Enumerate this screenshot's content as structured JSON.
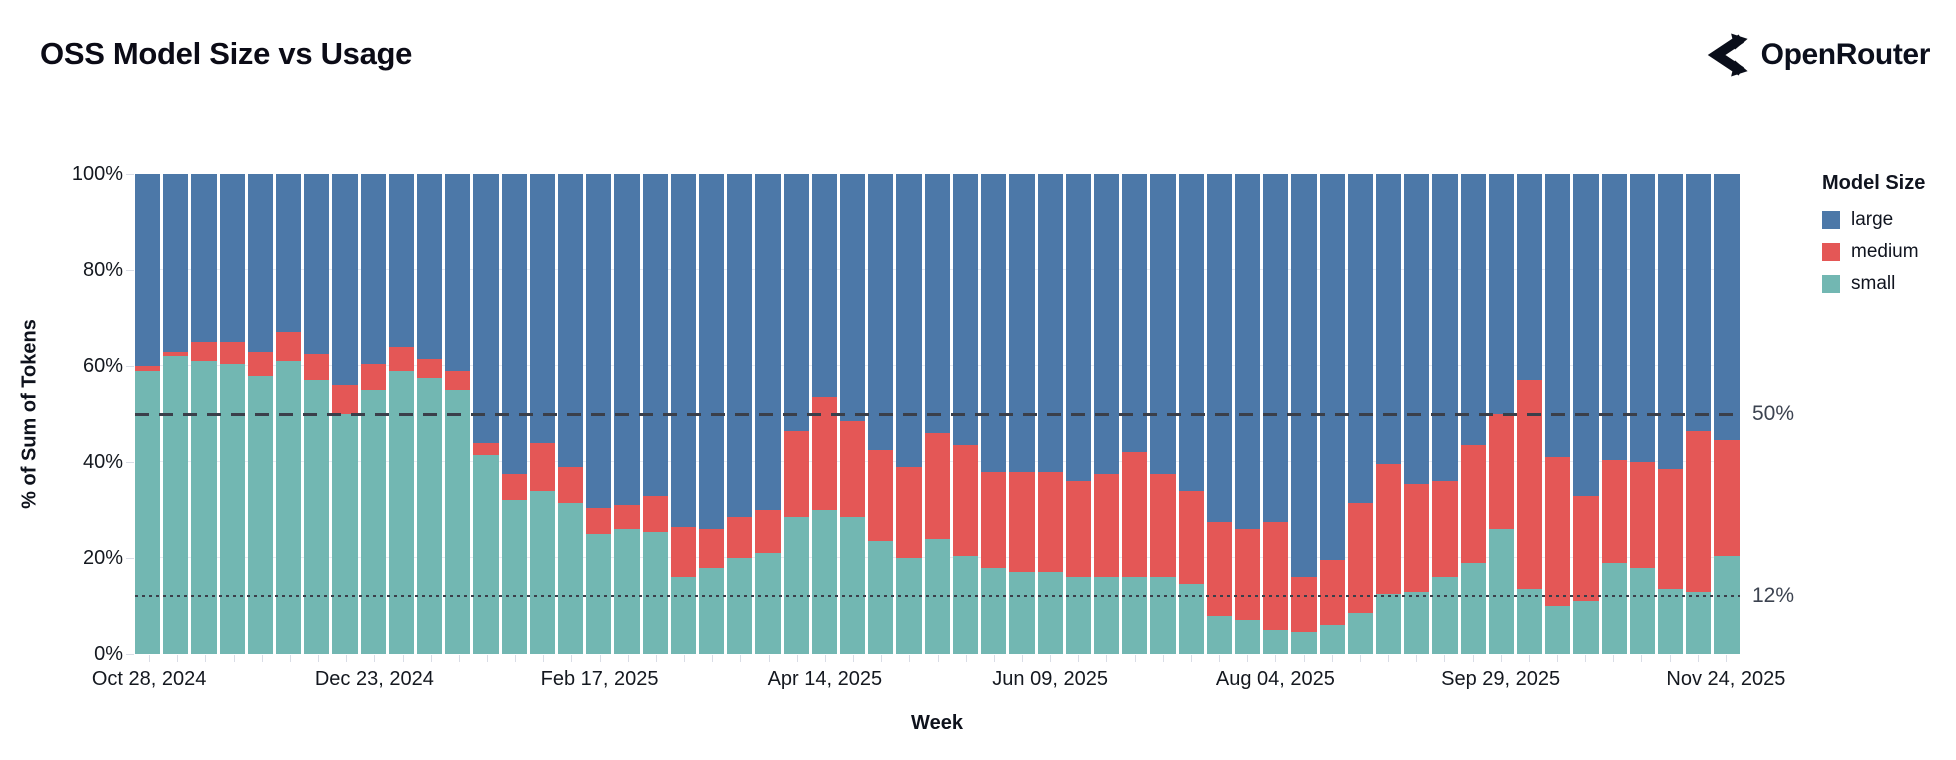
{
  "header": {
    "title": "OSS Model Size vs Usage",
    "brand": "OpenRouter"
  },
  "chart_data": {
    "type": "bar",
    "stacked": true,
    "title": "OSS Model Size vs Usage",
    "xlabel": "Week",
    "ylabel": "% of Sum of Tokens",
    "ylim": [
      0,
      100
    ],
    "grid": true,
    "y_ticks": [
      "0%",
      "20%",
      "40%",
      "60%",
      "80%",
      "100%"
    ],
    "x_label_every": 8,
    "visible_x_labels": [
      "Oct 28, 2024",
      "Dec 23, 2024",
      "Feb 17, 2025",
      "Apr 14, 2025",
      "Jun 09, 2025",
      "Aug 04, 2025",
      "Sep 29, 2025",
      "Nov 24, 2025"
    ],
    "legend_title": "Model Size",
    "legend_position": "right",
    "categories": [
      "Oct 28, 2024",
      "Nov 04, 2024",
      "Nov 11, 2024",
      "Nov 18, 2024",
      "Nov 25, 2024",
      "Dec 02, 2024",
      "Dec 09, 2024",
      "Dec 16, 2024",
      "Dec 23, 2024",
      "Dec 30, 2024",
      "Jan 06, 2025",
      "Jan 13, 2025",
      "Jan 20, 2025",
      "Jan 27, 2025",
      "Feb 03, 2025",
      "Feb 10, 2025",
      "Feb 17, 2025",
      "Feb 24, 2025",
      "Mar 03, 2025",
      "Mar 10, 2025",
      "Mar 17, 2025",
      "Mar 24, 2025",
      "Mar 31, 2025",
      "Apr 07, 2025",
      "Apr 14, 2025",
      "Apr 21, 2025",
      "Apr 28, 2025",
      "May 05, 2025",
      "May 12, 2025",
      "May 19, 2025",
      "May 26, 2025",
      "Jun 02, 2025",
      "Jun 09, 2025",
      "Jun 16, 2025",
      "Jun 23, 2025",
      "Jun 30, 2025",
      "Jul 07, 2025",
      "Jul 14, 2025",
      "Jul 21, 2025",
      "Jul 28, 2025",
      "Aug 04, 2025",
      "Aug 11, 2025",
      "Aug 18, 2025",
      "Aug 25, 2025",
      "Sep 01, 2025",
      "Sep 08, 2025",
      "Sep 15, 2025",
      "Sep 22, 2025",
      "Sep 29, 2025",
      "Oct 06, 2025",
      "Oct 13, 2025",
      "Oct 20, 2025",
      "Oct 27, 2025",
      "Nov 03, 2025",
      "Nov 10, 2025",
      "Nov 17, 2025",
      "Nov 24, 2025"
    ],
    "series": [
      {
        "name": "large",
        "color": "#4c78a8",
        "values": [
          40,
          37,
          35,
          35,
          37,
          33,
          37.5,
          44,
          39.5,
          36,
          38.5,
          41,
          56,
          62.5,
          56,
          61,
          69.5,
          69,
          67,
          73.5,
          74,
          71.5,
          70,
          53.5,
          46.5,
          51.5,
          57.5,
          61,
          54,
          56.5,
          62,
          62,
          62,
          64,
          62.5,
          58,
          62.5,
          66,
          72.5,
          74,
          72.5,
          84,
          80.5,
          68.5,
          60.5,
          64.5,
          64,
          56.5,
          50,
          43,
          59,
          67,
          59.5,
          60,
          61.5,
          53.5,
          55.5
        ]
      },
      {
        "name": "medium",
        "color": "#e45756",
        "values": [
          1,
          1,
          4,
          4.5,
          5,
          6,
          5.5,
          6,
          5.5,
          5,
          4,
          4,
          2.5,
          5.5,
          10,
          7.5,
          5.5,
          5,
          7.5,
          10.5,
          8,
          8.5,
          9,
          18,
          23.5,
          20,
          19,
          19,
          22,
          23,
          20,
          21,
          21,
          20,
          21.5,
          26,
          21.5,
          19.5,
          19.5,
          19,
          22.5,
          11.5,
          13.5,
          23,
          27,
          22.5,
          20,
          24.5,
          24,
          43.5,
          31,
          22,
          21.5,
          22,
          25,
          33.5,
          24
        ]
      },
      {
        "name": "small",
        "color": "#72b7b2",
        "values": [
          59,
          62,
          61,
          60.5,
          58,
          61,
          57,
          50,
          55,
          59,
          57.5,
          55,
          41.5,
          32,
          34,
          31.5,
          25,
          26,
          25.5,
          16,
          18,
          20,
          21,
          28.5,
          30,
          28.5,
          23.5,
          20,
          24,
          20.5,
          18,
          17,
          17,
          16,
          16,
          16,
          16,
          14.5,
          8,
          7,
          5,
          4.5,
          6,
          8.5,
          12.5,
          13,
          16,
          19,
          26,
          13.5,
          10,
          11,
          19,
          18,
          13.5,
          13,
          20.5
        ]
      }
    ],
    "reference_lines": [
      {
        "value": 50,
        "label": "50%",
        "style": "dashed"
      },
      {
        "value": 12,
        "label": "12%",
        "style": "dotted"
      }
    ]
  }
}
